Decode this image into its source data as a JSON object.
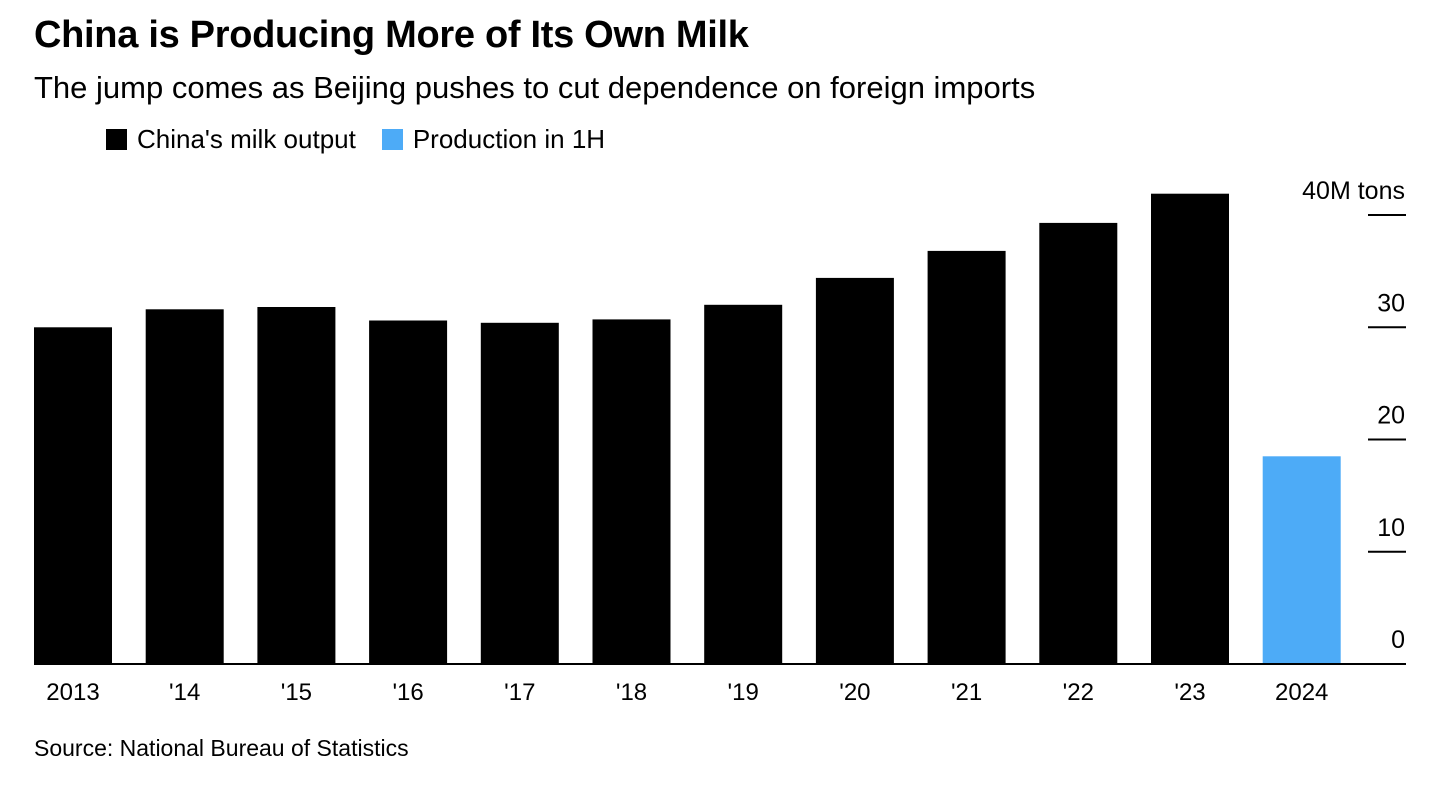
{
  "title": "China is Producing More of Its Own Milk",
  "subtitle": "The jump comes as Beijing pushes to cut dependence on foreign imports",
  "legend": [
    {
      "label": "China's milk output",
      "color": "#000000"
    },
    {
      "label": "Production in 1H",
      "color": "#4dabf7"
    }
  ],
  "source": "Source: National Bureau of Statistics",
  "chart_data": {
    "type": "bar",
    "categories": [
      "2013",
      "'14",
      "'15",
      "'16",
      "'17",
      "'18",
      "'19",
      "'20",
      "'21",
      "'22",
      "'23",
      "2024"
    ],
    "series": [
      {
        "name": "China's milk output",
        "color": "#000000",
        "values": [
          30.0,
          31.6,
          31.8,
          30.6,
          30.4,
          30.7,
          32.0,
          34.4,
          36.8,
          39.3,
          41.9,
          null
        ]
      },
      {
        "name": "Production in 1H",
        "color": "#4dabf7",
        "values": [
          null,
          null,
          null,
          null,
          null,
          null,
          null,
          null,
          null,
          null,
          null,
          18.5
        ]
      }
    ],
    "ylim": [
      0,
      40
    ],
    "yticks": [
      0,
      10,
      20,
      30,
      40
    ],
    "ytick_labels": [
      "0",
      "10",
      "20",
      "30",
      "40M tons"
    ],
    "yaxis_position": "right",
    "grid": false,
    "legend_position": "top-left"
  }
}
